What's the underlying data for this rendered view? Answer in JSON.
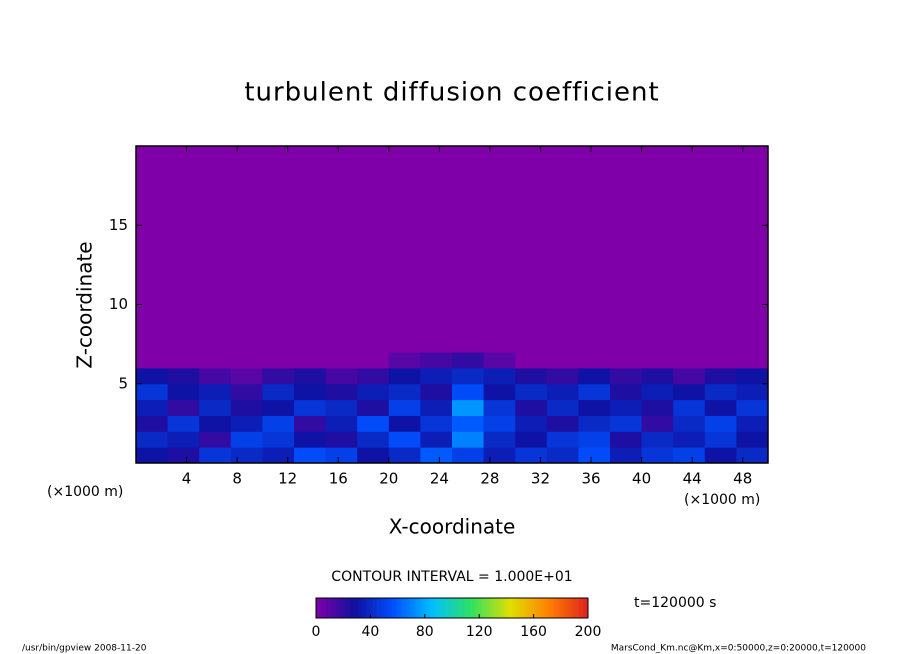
{
  "chart_data": {
    "type": "contour",
    "title": "turbulent diffusion coefficient",
    "x_label": "X-coordinate",
    "y_label": "Z-coordinate",
    "x_unit": "(×1000 m)",
    "xlim": [
      0,
      50
    ],
    "ylim": [
      0,
      20
    ],
    "xticks": [
      4,
      8,
      12,
      16,
      20,
      24,
      28,
      32,
      36,
      40,
      44,
      48
    ],
    "yticks": [
      5,
      10,
      15
    ],
    "x_bins": [
      0,
      2.5,
      5,
      7.5,
      10,
      12.5,
      15,
      17.5,
      20,
      22.5,
      25,
      27.5,
      30,
      32.5,
      35,
      37.5,
      40,
      42.5,
      45,
      47.5,
      50
    ],
    "y_bins": [
      0,
      1,
      2,
      3,
      4,
      5,
      6,
      7,
      20
    ],
    "values": [
      [
        30,
        25,
        45,
        40,
        35,
        55,
        50,
        30,
        40,
        60,
        50,
        35,
        45,
        40,
        55,
        35,
        45,
        50,
        30,
        40
      ],
      [
        40,
        35,
        20,
        50,
        45,
        30,
        25,
        40,
        55,
        35,
        70,
        40,
        30,
        45,
        50,
        25,
        40,
        35,
        45,
        30
      ],
      [
        25,
        45,
        30,
        35,
        50,
        20,
        35,
        55,
        30,
        45,
        60,
        50,
        35,
        25,
        40,
        45,
        20,
        40,
        50,
        35
      ],
      [
        35,
        20,
        40,
        25,
        30,
        45,
        40,
        25,
        50,
        35,
        75,
        45,
        25,
        40,
        30,
        35,
        25,
        45,
        30,
        45
      ],
      [
        45,
        30,
        35,
        20,
        40,
        30,
        25,
        35,
        40,
        25,
        55,
        30,
        40,
        35,
        45,
        25,
        35,
        30,
        40,
        35
      ],
      [
        30,
        25,
        15,
        10,
        20,
        25,
        15,
        20,
        30,
        35,
        40,
        35,
        25,
        20,
        30,
        20,
        25,
        15,
        25,
        30
      ],
      [
        0,
        0,
        0,
        0,
        0,
        0,
        0,
        0,
        10,
        15,
        20,
        10,
        0,
        0,
        0,
        0,
        0,
        0,
        0,
        0
      ],
      [
        0,
        0,
        0,
        0,
        0,
        0,
        0,
        0,
        0,
        0,
        0,
        0,
        0,
        0,
        0,
        0,
        0,
        0,
        0,
        0
      ]
    ],
    "colormap": [
      "#7f00a8",
      "#1010a0",
      "#0050ff",
      "#00c0ff",
      "#30e060",
      "#e0e000",
      "#ff8000",
      "#e02020"
    ],
    "clim": [
      0,
      200
    ],
    "cticks": [
      0,
      40,
      80,
      120,
      160,
      200
    ],
    "contour_interval": "CONTOUR INTERVAL = 1.000E+01",
    "time_label": "t=120000 s",
    "footer_left": "/usr/bin/gpview  2008-11-20",
    "footer_right": "MarsCond_Km.nc@Km,x=0:50000,z=0:20000,t=120000"
  }
}
